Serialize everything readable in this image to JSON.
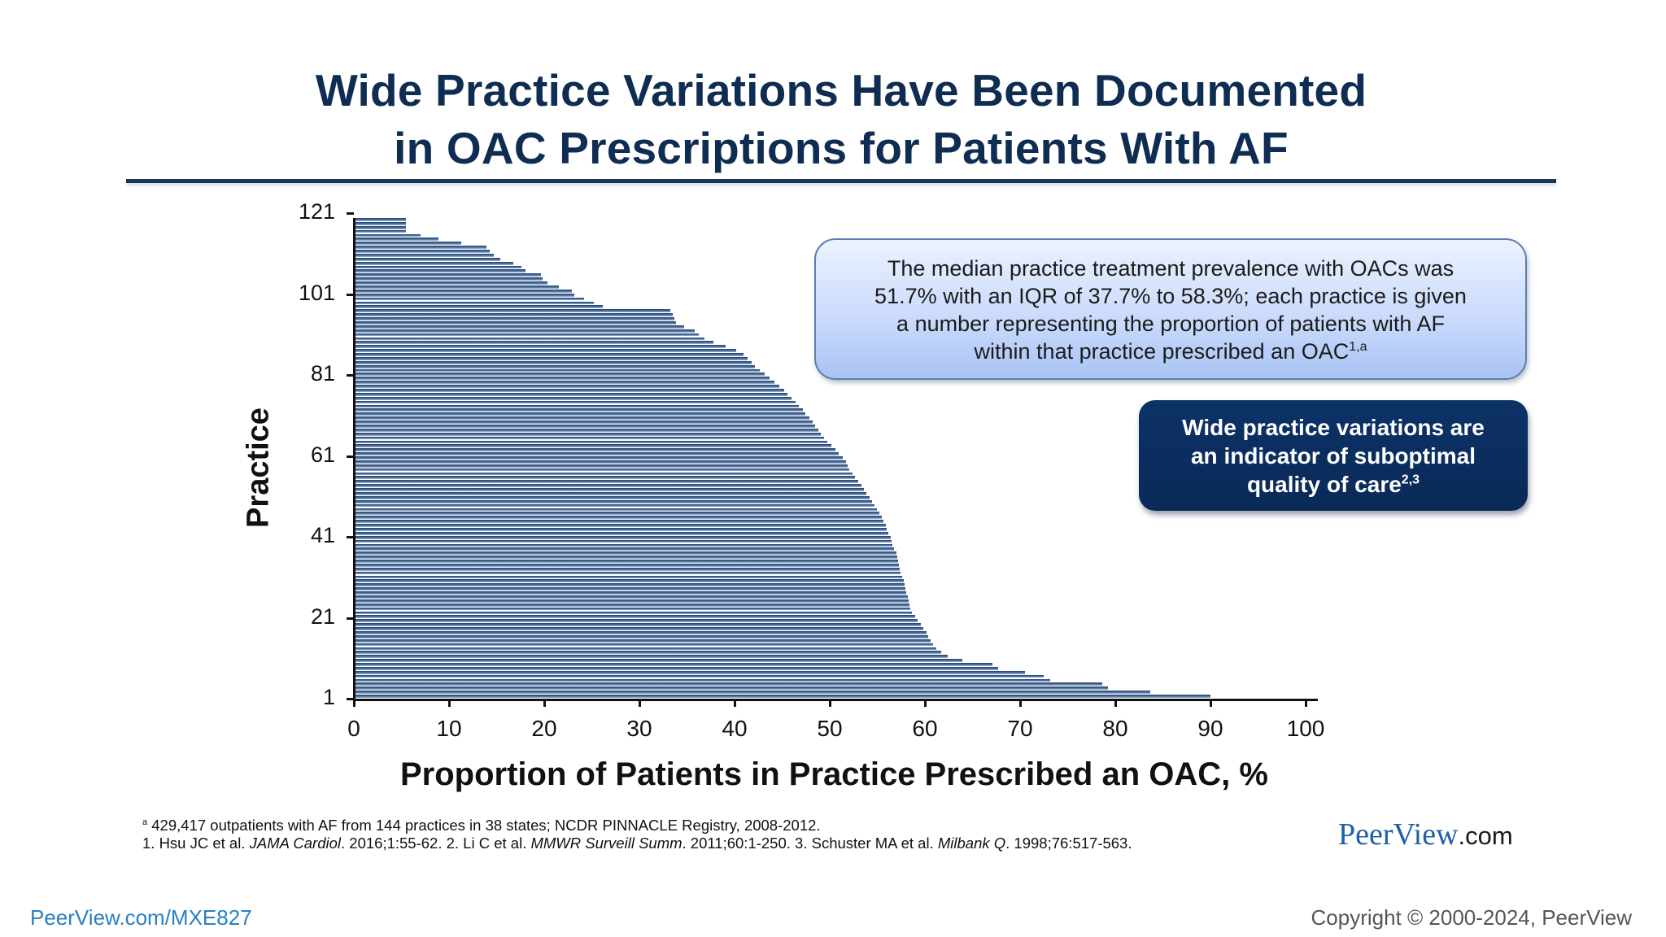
{
  "slide": {
    "title_line1": "Wide Practice Variations Have Been Documented",
    "title_line2": "in OAC Prescriptions for Patients With AF",
    "colors": {
      "title": "#0f2d52",
      "bar": "#3a5a85",
      "info_box_bg": "#c8d9fb",
      "emphasis_box_bg": "#0b2d5f",
      "brand_blue": "#1e5fa8",
      "link_blue": "#2a7fc1"
    }
  },
  "info_box": {
    "line1": "The median practice treatment prevalence with OACs was",
    "line2": "51.7% with an IQR of 37.7% to 58.3%; each practice is given",
    "line3": "a number representing the proportion of patients with AF",
    "line4": "within that practice prescribed an OAC",
    "line4_sup": "1,a"
  },
  "emphasis_box": {
    "line1": "Wide practice variations are",
    "line2": "an indicator of suboptimal",
    "line3": "quality of care",
    "line3_sup": "2,3"
  },
  "footnotes": {
    "a_mark": "a",
    "a_text": "429,417 outpatients with AF from 144 practices in 38 states; NCDR PINNACLE Registry, 2008-2012.",
    "ref1_pre": "1. Hsu JC et al. ",
    "ref1_journal": "JAMA Cardiol",
    "ref1_post": ". 2016;1:55-62. 2. Li C et al. ",
    "ref2_journal": "MMWR Surveill Summ",
    "ref2_post": ". 2011;60:1-250. 3. Schuster MA et al. ",
    "ref3_journal": "Milbank Q",
    "ref3_post": ". 1998;76:517-563."
  },
  "brand": {
    "name": "PeerView",
    "suffix": ".com"
  },
  "bottom_bar": {
    "course_link": "PeerView.com/MXE827",
    "copyright": "Copyright © 2000-2024, PeerView"
  },
  "chart_data": {
    "type": "bar",
    "orientation": "horizontal",
    "title": "",
    "xlabel": "Proportion of Patients in Practice Prescribed an OAC, %",
    "ylabel": "Practice",
    "xlim": [
      0,
      100
    ],
    "ylim": [
      1,
      121
    ],
    "x_ticks": [
      0,
      10,
      20,
      30,
      40,
      50,
      60,
      70,
      80,
      90,
      100
    ],
    "y_ticks": [
      1,
      21,
      41,
      61,
      81,
      101,
      121
    ],
    "grid": false,
    "legend": null,
    "annotations": {
      "median_pct": 51.7,
      "iqr_low_pct": 37.7,
      "iqr_high_pct": 58.3
    },
    "categories_note": "Practice 1 (bottom) to 121 (top); values = % of AF patients prescribed OAC",
    "values": [
      89.8,
      83.5,
      79.1,
      78.5,
      73,
      72.3,
      70.3,
      67.5,
      66.9,
      63.8,
      62.2,
      61.5,
      61.0,
      60.7,
      60.4,
      60.2,
      60.0,
      59.7,
      59.4,
      59.1,
      58.8,
      58.5,
      58.3,
      58.2,
      58.1,
      58.0,
      57.9,
      57.8,
      57.7,
      57.6,
      57.4,
      57.3,
      57.2,
      57.1,
      57.0,
      56.9,
      56.8,
      56.6,
      56.4,
      56.3,
      56.2,
      56.0,
      55.8,
      55.7,
      55.5,
      55.3,
      55.0,
      54.8,
      54.5,
      54.3,
      54.0,
      53.7,
      53.4,
      53.2,
      52.8,
      52.5,
      52.2,
      51.9,
      51.7,
      51.5,
      51.2,
      50.8,
      50.4,
      50.0,
      49.6,
      49.2,
      48.9,
      48.6,
      48.3,
      48.0,
      47.7,
      47.3,
      47.0,
      46.6,
      46.2,
      45.8,
      45.4,
      45.0,
      44.5,
      44.0,
      43.5,
      43.0,
      42.5,
      42.0,
      41.6,
      41.2,
      40.8,
      40.0,
      38.9,
      37.6,
      36.7,
      36.1,
      35.6,
      34.5,
      33.7,
      33.5,
      33.3,
      33.1,
      26.0,
      25.0,
      24.0,
      23.0,
      22.7,
      21.4,
      20.2,
      19.7,
      19.5,
      17.9,
      17.4,
      16.6,
      15.2,
      14.5,
      14.1,
      13.8,
      11.1,
      8.7,
      6.8,
      5.3,
      5.3,
      5.3,
      5.3
    ]
  }
}
